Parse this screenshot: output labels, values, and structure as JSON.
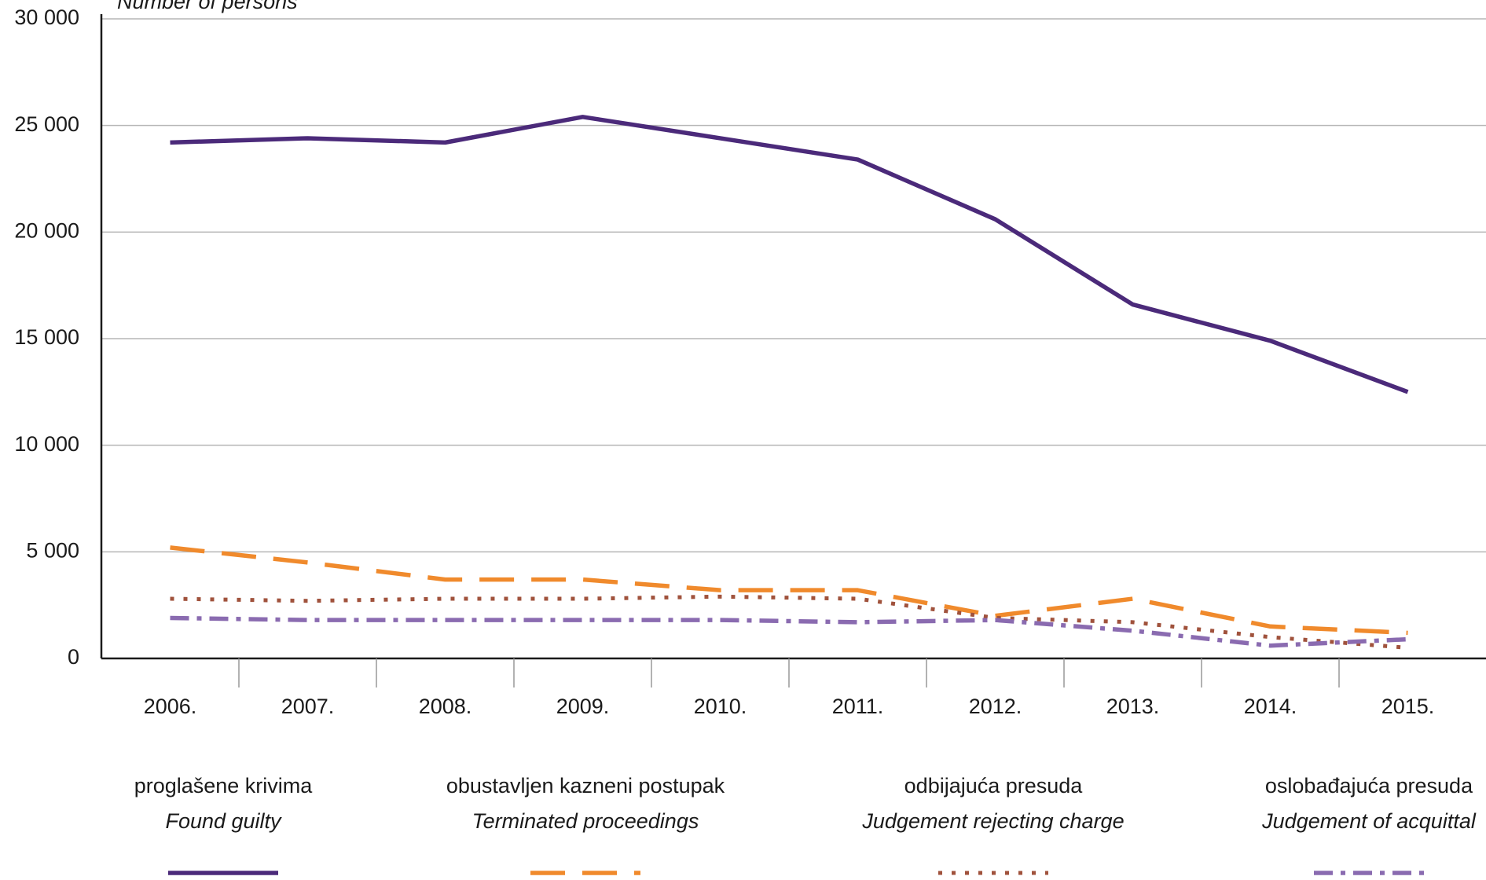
{
  "chart_data": {
    "type": "line",
    "ylabel": "Number of persons",
    "categories": [
      "2006.",
      "2007.",
      "2008.",
      "2009.",
      "2010.",
      "2011.",
      "2012.",
      "2013.",
      "2014.",
      "2015."
    ],
    "ylim": [
      0,
      30000
    ],
    "yticks": [
      0,
      {
        "value": 5000,
        "label": "5 000"
      },
      {
        "value": 10000,
        "label": "10 000"
      },
      {
        "value": 15000,
        "label": "15 000"
      },
      {
        "value": 20000,
        "label": "20 000"
      },
      {
        "value": 25000,
        "label": "25 000"
      },
      {
        "value": 30000,
        "label": "30 000"
      }
    ],
    "grid": true,
    "series": [
      {
        "name": "proglašene krivima",
        "name_en": "Found guilty",
        "color": "#4b2a7a",
        "style": "solid",
        "values": [
          24200,
          24400,
          24200,
          25400,
          24400,
          23400,
          20600,
          16600,
          14900,
          12500
        ]
      },
      {
        "name": "obustavljen kazneni postupak",
        "name_en": "Terminated proceedings",
        "color": "#f08a2c",
        "style": "dashed",
        "values": [
          5200,
          4500,
          3700,
          3700,
          3200,
          3200,
          2000,
          2800,
          1500,
          1200
        ]
      },
      {
        "name": "odbijajuća presuda",
        "name_en": "Judgement rejecting charge",
        "color": "#a0523c",
        "style": "dotted",
        "values": [
          2800,
          2700,
          2800,
          2800,
          2900,
          2800,
          1900,
          1700,
          1000,
          500
        ]
      },
      {
        "name": "oslobađajuća presuda",
        "name_en": "Judgement of acquittal",
        "color": "#8a6bb0",
        "style": "dashdot",
        "values": [
          1900,
          1800,
          1800,
          1800,
          1800,
          1700,
          1800,
          1300,
          600,
          900
        ]
      }
    ]
  }
}
